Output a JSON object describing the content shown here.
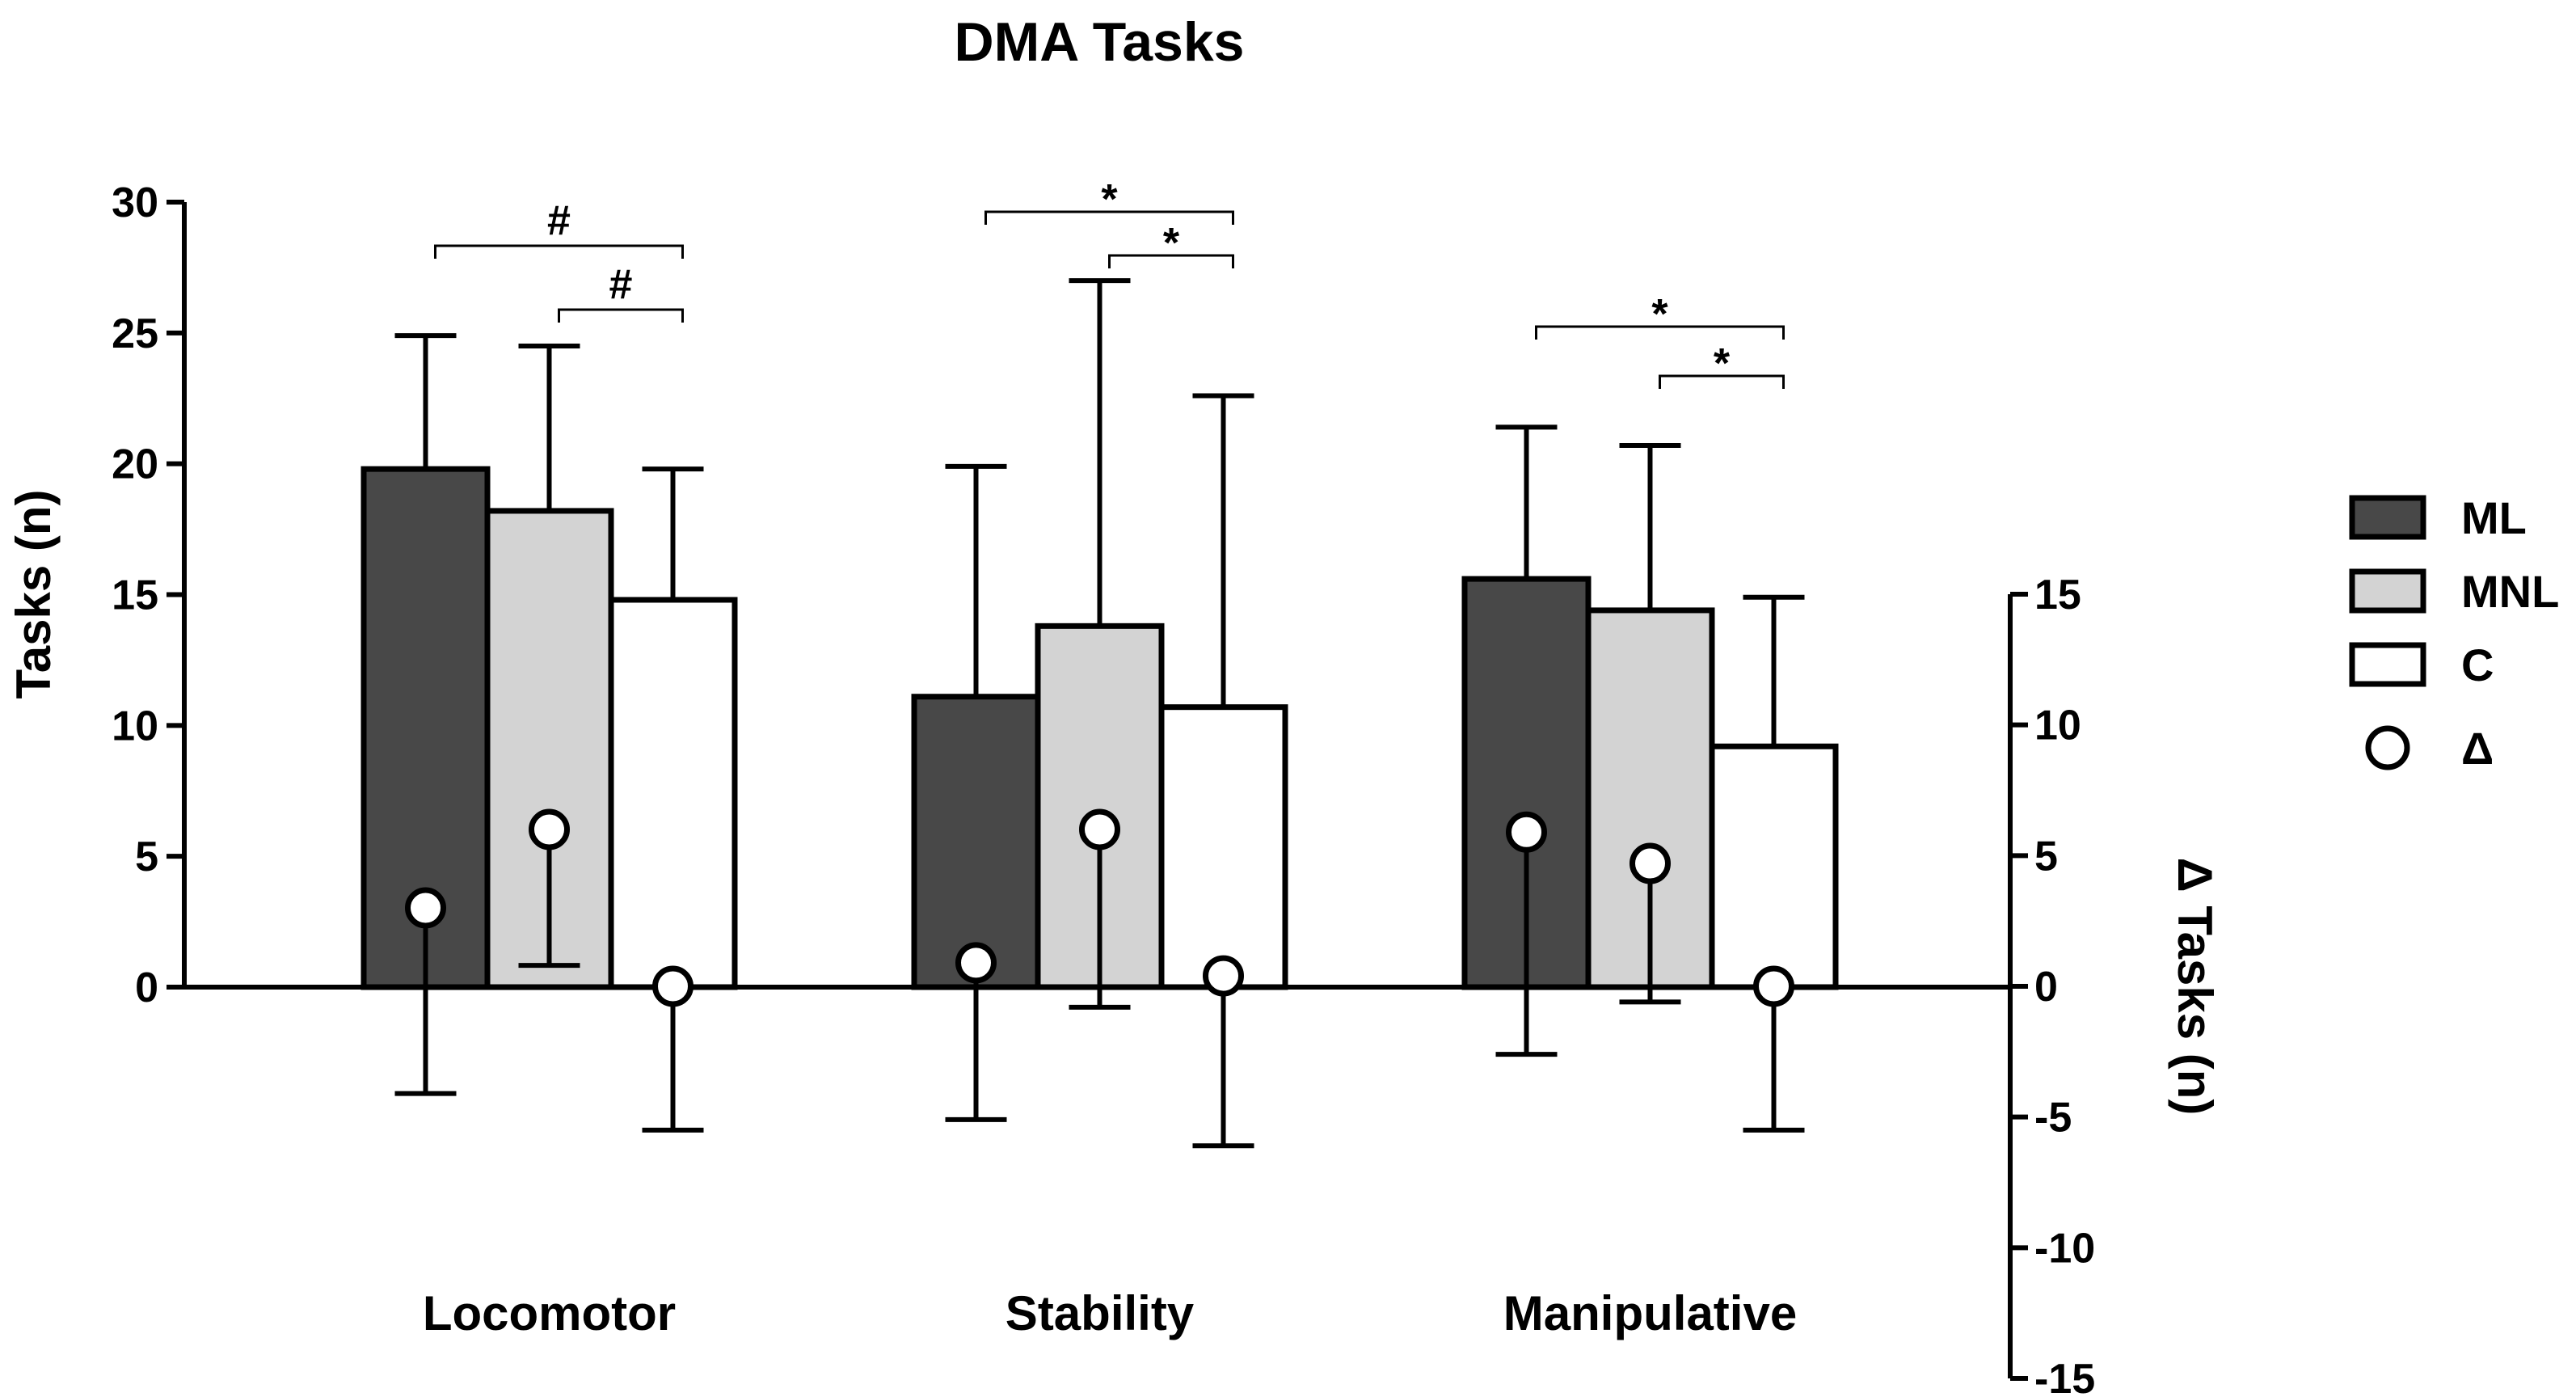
{
  "chart_data": {
    "type": "bar",
    "title": "DMA Tasks",
    "ylabel": "Tasks (n)",
    "y2label": "Δ Tasks (n)",
    "ylim": [
      0,
      30
    ],
    "yticks": [
      0,
      5,
      10,
      15,
      20,
      25,
      30
    ],
    "y2lim": [
      -15,
      15
    ],
    "y2ticks": [
      15,
      10,
      5,
      0,
      -5,
      -10,
      -15
    ],
    "categories": [
      "Locomotor",
      "Stability",
      "Manipulative"
    ],
    "series": [
      {
        "name": "ML",
        "color": "#484848",
        "values": [
          19.8,
          11.1,
          15.6
        ],
        "error": [
          5.1,
          8.8,
          5.8
        ]
      },
      {
        "name": "MNL",
        "color": "#d3d3d3",
        "values": [
          18.2,
          13.8,
          14.4
        ],
        "error": [
          6.3,
          13.2,
          6.3
        ]
      },
      {
        "name": "C",
        "color": "#ffffff",
        "values": [
          14.8,
          10.7,
          9.2
        ],
        "error": [
          5.0,
          11.9,
          5.7
        ]
      }
    ],
    "delta": {
      "name": "Δ",
      "values": [
        [
          3.0,
          6.0,
          0.0
        ],
        [
          0.9,
          6.0,
          0.4
        ],
        [
          5.9,
          4.7,
          0.0
        ]
      ],
      "error": [
        [
          7.1,
          5.2,
          5.5
        ],
        [
          6.0,
          6.8,
          6.5
        ],
        [
          8.5,
          5.3,
          5.5
        ]
      ]
    },
    "significance": [
      {
        "category": 0,
        "from": "ML",
        "to": "C",
        "label": "#"
      },
      {
        "category": 0,
        "from": "MNL",
        "to": "C",
        "label": "#"
      },
      {
        "category": 1,
        "from": "ML",
        "to": "C",
        "label": "*"
      },
      {
        "category": 1,
        "from": "MNL",
        "to": "C",
        "label": "*"
      },
      {
        "category": 2,
        "from": "ML",
        "to": "C",
        "label": "*"
      },
      {
        "category": 2,
        "from": "MNL",
        "to": "C",
        "label": "*"
      }
    ],
    "legend": [
      "ML",
      "MNL",
      "C",
      "Δ"
    ],
    "legend_position": "right"
  }
}
